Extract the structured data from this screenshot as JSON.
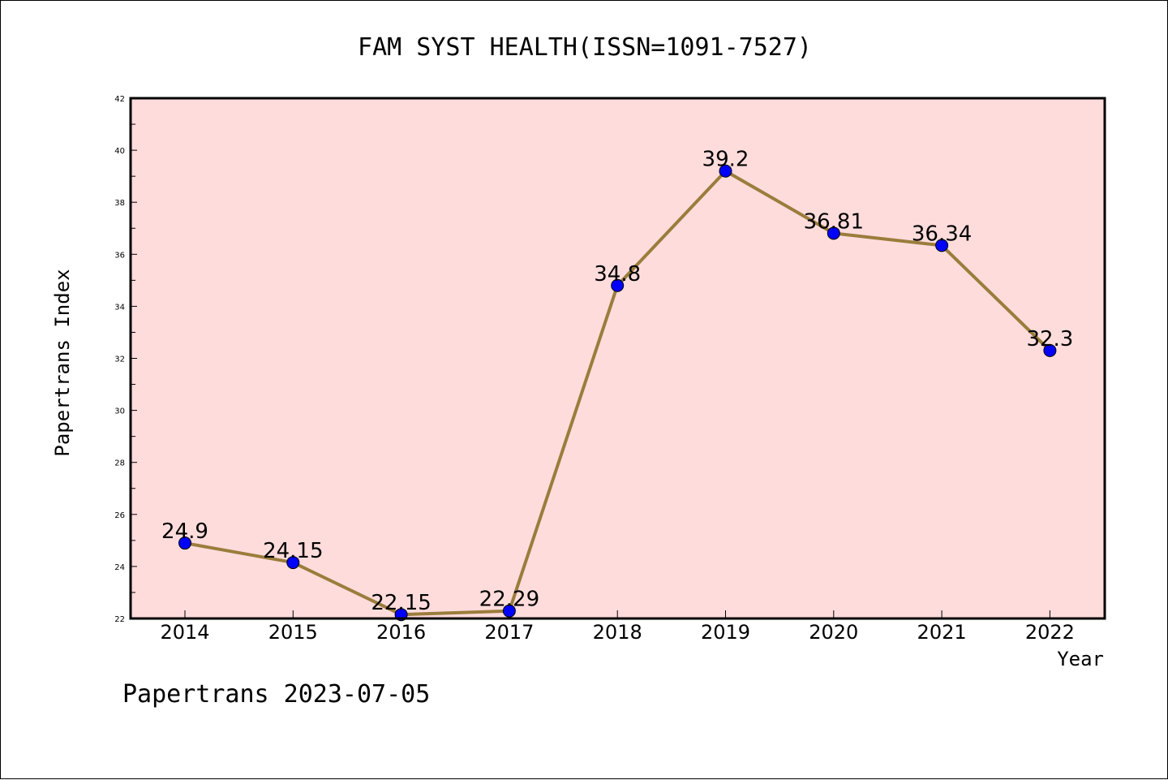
{
  "chart_data": {
    "type": "line",
    "title": "FAM SYST HEALTH(ISSN=1091-7527)",
    "xlabel": "Year",
    "ylabel": "Papertrans Index",
    "x": [
      "2014",
      "2015",
      "2016",
      "2017",
      "2018",
      "2019",
      "2020",
      "2021",
      "2022"
    ],
    "values": [
      24.9,
      24.15,
      22.15,
      22.29,
      34.8,
      39.2,
      36.81,
      36.34,
      32.3
    ],
    "data_labels": [
      "24.9",
      "24.15",
      "22.15",
      "22.29",
      "34.8",
      "39.2",
      "36.81",
      "36.34",
      "32.3"
    ],
    "ylim": [
      22,
      42
    ],
    "yticks": [
      22,
      24,
      26,
      28,
      30,
      32,
      34,
      36,
      38,
      40,
      42
    ],
    "grid": false,
    "colors": {
      "plot_background": "#ffdcdc",
      "line": "#9a7d3c",
      "marker": "#0000ff"
    }
  },
  "footer": {
    "text": "Papertrans 2023-07-05"
  }
}
